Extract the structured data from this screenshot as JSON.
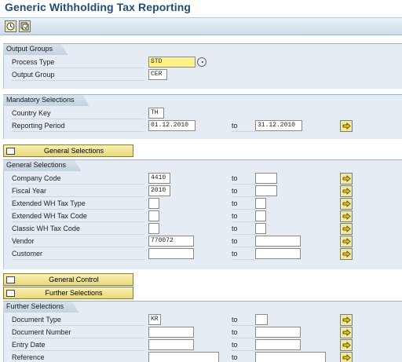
{
  "header": {
    "title": "Generic Withholding Tax Reporting"
  },
  "toolbar": {
    "buttons": [
      "execute-icon",
      "variant-icon"
    ]
  },
  "output_groups": {
    "title": "Output Groups",
    "rows": [
      {
        "label": "Process Type",
        "value": "STD"
      },
      {
        "label": "Output Group",
        "value": "CER"
      }
    ]
  },
  "mandatory": {
    "title": "Mandatory Selections",
    "rows": [
      {
        "label": "Country Key",
        "value": "TH"
      },
      {
        "label": "Reporting Period",
        "from": "01.12.2010",
        "to_label": "to",
        "to": "31.12.2010"
      }
    ]
  },
  "buttons": {
    "general_selections": "General Selections",
    "general_control": "General Control",
    "further_selections": "Further Selections"
  },
  "general": {
    "title": "General Selections",
    "rows": [
      {
        "label": "Company Code",
        "from": "4410",
        "to_label": "to",
        "to": ""
      },
      {
        "label": "Fiscal Year",
        "from": "2010",
        "to_label": "to",
        "to": ""
      },
      {
        "label": "Extended WH Tax Type",
        "from": "",
        "to_label": "to",
        "to": ""
      },
      {
        "label": "Extended WH Tax Code",
        "from": "",
        "to_label": "to",
        "to": ""
      },
      {
        "label": "Classic WH Tax Code",
        "from": "",
        "to_label": "to",
        "to": ""
      },
      {
        "label": "Vendor",
        "from": "770072",
        "to_label": "to",
        "to": ""
      },
      {
        "label": "Customer",
        "from": "",
        "to_label": "to",
        "to": ""
      }
    ]
  },
  "further": {
    "title": "Further Selections",
    "rows": [
      {
        "label": "Document Type",
        "from": "KR",
        "to_label": "to",
        "to": ""
      },
      {
        "label": "Document Number",
        "from": "",
        "to_label": "to",
        "to": ""
      },
      {
        "label": "Entry Date",
        "from": "",
        "to_label": "to",
        "to": ""
      },
      {
        "label": "Reference",
        "from": "",
        "to_label": "to",
        "to": ""
      }
    ]
  }
}
